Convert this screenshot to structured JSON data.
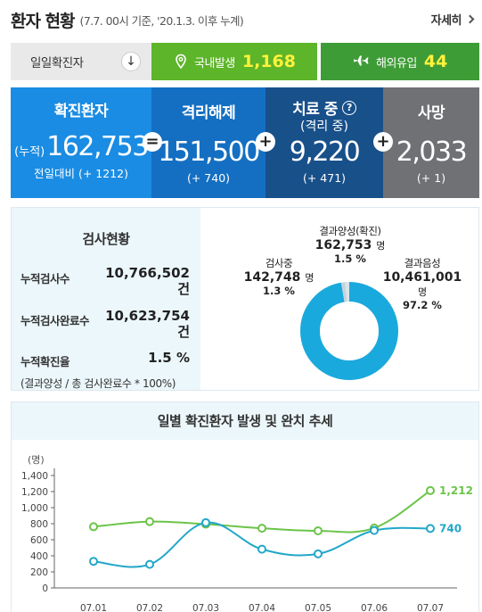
{
  "header": {
    "title": "환자 현황",
    "subtitle": "(7.7. 00시 기준, '20.1.3. 이후 누계)",
    "more_label": "자세히"
  },
  "daily": {
    "label": "일일확진자",
    "domestic_label": "국내발생",
    "domestic_value": "1,168",
    "imported_label": "해외유입",
    "imported_value": "44"
  },
  "stats": {
    "confirmed": {
      "title": "확진환자",
      "prefix": "(누적)",
      "value": "162,753",
      "delta": "전일대비 (+ 1212)"
    },
    "released": {
      "title": "격리해제",
      "value": "151,500",
      "delta": "(+ 740)"
    },
    "treating": {
      "title": "치료 중",
      "help": "?",
      "title2": "(격리 중)",
      "value": "9,220",
      "delta": "(+ 471)"
    },
    "deaths": {
      "title": "사망",
      "value": "2,033",
      "delta": "(+ 1)"
    },
    "op_eq": "=",
    "op_plus": "+"
  },
  "tests": {
    "title": "검사현황",
    "rows": [
      {
        "key": "누적검사수",
        "value": "10,766,502",
        "unit": "건"
      },
      {
        "key": "누적검사완료수",
        "value": "10,623,754",
        "unit": "건"
      },
      {
        "key": "누적확진율",
        "value": "1.5 %"
      }
    ],
    "note": "(결과양성 / 총 검사완료수 * 100%)",
    "donut": {
      "positive": {
        "label": "결과양성(확진)",
        "value": "162,753",
        "unit": "명",
        "pct": "1.5 %",
        "fraction": 0.015
      },
      "testing": {
        "label": "검사중",
        "value": "142,748",
        "unit": "명",
        "pct": "1.3 %",
        "fraction": 0.013
      },
      "negative": {
        "label": "결과음성",
        "value": "10,461,001",
        "unit": "명",
        "pct": "97.2 %",
        "fraction": 0.972
      },
      "colors": {
        "negative": "#1aa9dc",
        "positive": "#d9e4ea",
        "testing": "#c5d3da"
      }
    }
  },
  "chart": {
    "title": "일별 확진환자 발생 및 완치 추세",
    "unit_label": "(명)"
  },
  "chart_data": {
    "type": "line",
    "categories": [
      "07.01",
      "07.02",
      "07.03",
      "07.04",
      "07.05",
      "07.06",
      "07.07"
    ],
    "series": [
      {
        "values": [
          762,
          826,
          794,
          743,
          711,
          746,
          1212
        ],
        "color": "#6cc449"
      },
      {
        "values": [
          331,
          293,
          813,
          482,
          424,
          715,
          740
        ],
        "color": "#22a7c9"
      }
    ],
    "end_labels": [
      "1,212",
      "740"
    ],
    "yticks": [
      "0",
      "200",
      "400",
      "600",
      "800",
      "1,000",
      "1,200",
      "1,400"
    ],
    "ylim": [
      0,
      1400
    ]
  }
}
